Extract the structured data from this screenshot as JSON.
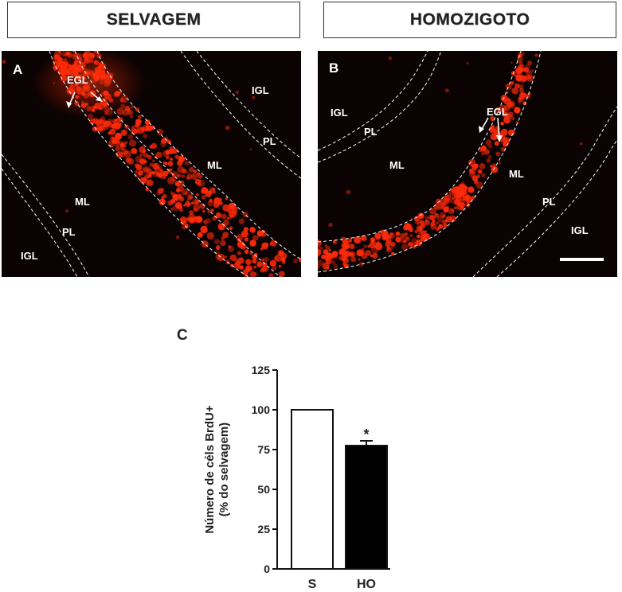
{
  "headers": {
    "left": "SELVAGEM",
    "right": "HOMOZIGOTO"
  },
  "panel_a": {
    "letter": "A",
    "labels": {
      "egl": "EGL",
      "igl_top": "IGL",
      "pl_top": "PL",
      "ml_right": "ML",
      "ml_left": "ML",
      "pl_left": "PL",
      "igl_left": "IGL"
    }
  },
  "panel_b": {
    "letter": "B",
    "labels": {
      "igl_left": "IGL",
      "pl_left": "PL",
      "ml_left": "ML",
      "egl": "EGL",
      "ml_right": "ML",
      "pl_right": "PL",
      "igl_right": "IGL"
    }
  },
  "chart_panel_letter": "C",
  "chart_data": {
    "type": "bar",
    "categories": [
      "S",
      "HO"
    ],
    "values": [
      100,
      77.5
    ],
    "errors": [
      0,
      3
    ],
    "bar_colors": [
      "#ffffff",
      "#000000"
    ],
    "significance": [
      "",
      "*"
    ],
    "ylabel_line1": "Número de céls BrdU+",
    "ylabel_line2": "(% do selvagem)",
    "ylim": [
      0,
      125
    ],
    "yticks": [
      "0",
      "25",
      "50",
      "75",
      "100",
      "125"
    ],
    "tick_values": [
      0,
      25,
      50,
      75,
      100,
      125
    ]
  },
  "colors": {
    "cells": "#ff2a0a",
    "background": "#0b0303",
    "dashed": "#e8e8e8"
  }
}
